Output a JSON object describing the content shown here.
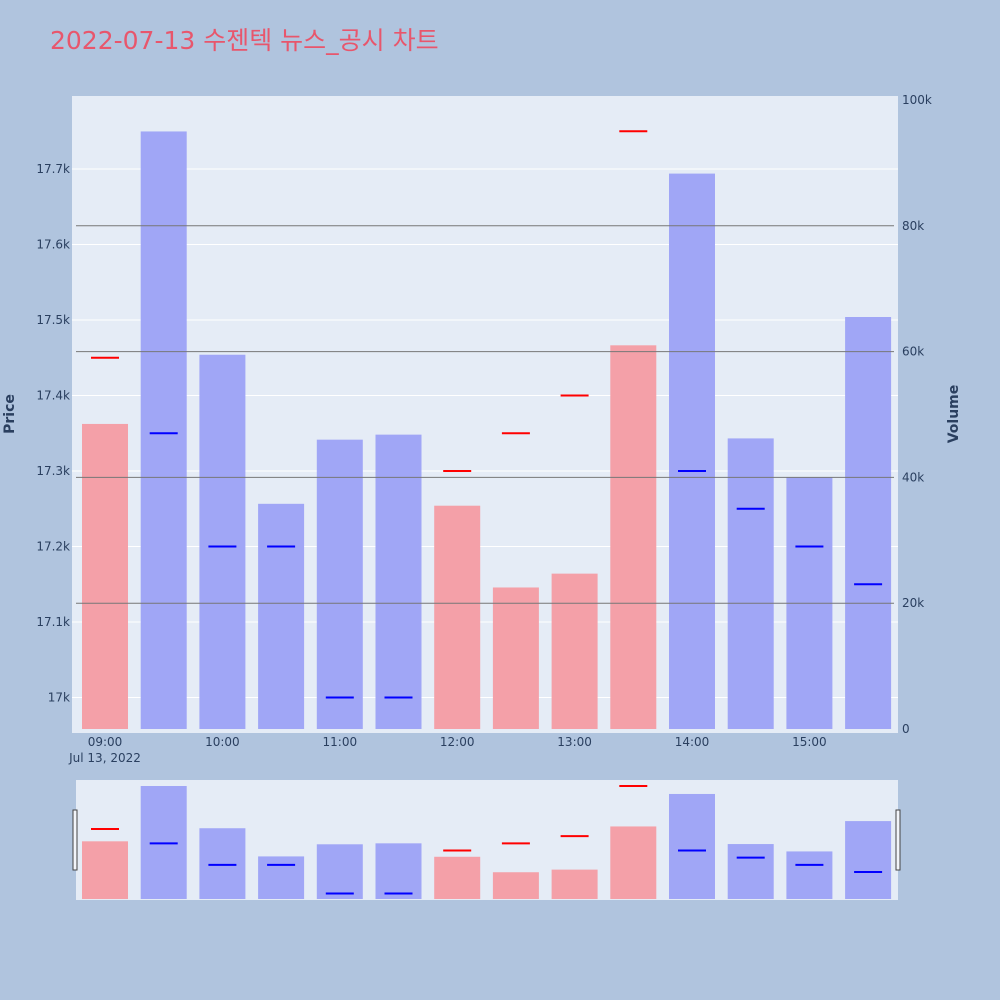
{
  "title": "2022-07-13 수젠텍 뉴스_공시 차트",
  "colors": {
    "title": "#e8566c",
    "page_bg": "#b0c4de",
    "plot_bg": "#e5ecf6",
    "up_bar": "#f4a0a8",
    "down_bar": "#a0a6f6",
    "up_tick": "#ff0000",
    "down_tick": "#0000ff"
  },
  "chart_data": {
    "type": "bar",
    "title": "2022-07-13 수젠텍 뉴스_공시 차트",
    "ylabel": "Price",
    "y2label": "Volume",
    "x_ticks": [
      "09:00",
      "10:00",
      "11:00",
      "12:00",
      "13:00",
      "14:00",
      "15:00"
    ],
    "x_date_label": "Jul 13, 2022",
    "y_ticks": [
      "17k",
      "17.1k",
      "17.2k",
      "17.3k",
      "17.4k",
      "17.5k",
      "17.6k",
      "17.7k"
    ],
    "y_tick_values": [
      17000,
      17100,
      17200,
      17300,
      17400,
      17500,
      17600,
      17700
    ],
    "y2_ticks": [
      "0",
      "20k",
      "40k",
      "60k",
      "80k",
      "100k"
    ],
    "y2_tick_values": [
      0,
      20000,
      40000,
      60000,
      80000,
      100000
    ],
    "ylim": [
      16960,
      17800
    ],
    "y2lim": [
      0,
      100000
    ],
    "grid": true,
    "x": [
      "09:00",
      "09:30",
      "10:00",
      "10:30",
      "11:00",
      "11:30",
      "12:00",
      "12:30",
      "13:00",
      "13:30",
      "14:00",
      "14:30",
      "15:00",
      "15:30"
    ],
    "volume": [
      48500,
      95000,
      59500,
      35800,
      46000,
      46800,
      35500,
      22500,
      24700,
      61000,
      88300,
      46200,
      40000,
      65500
    ],
    "price": [
      17450,
      17350,
      17200,
      17200,
      17000,
      17000,
      17300,
      17350,
      17400,
      17750,
      17300,
      17250,
      17200,
      17150
    ],
    "direction": [
      "up",
      "down",
      "down",
      "down",
      "down",
      "down",
      "up",
      "up",
      "up",
      "up",
      "down",
      "down",
      "down",
      "down"
    ],
    "reference_lines_volume": [
      20000,
      40000,
      60000,
      80000
    ]
  }
}
